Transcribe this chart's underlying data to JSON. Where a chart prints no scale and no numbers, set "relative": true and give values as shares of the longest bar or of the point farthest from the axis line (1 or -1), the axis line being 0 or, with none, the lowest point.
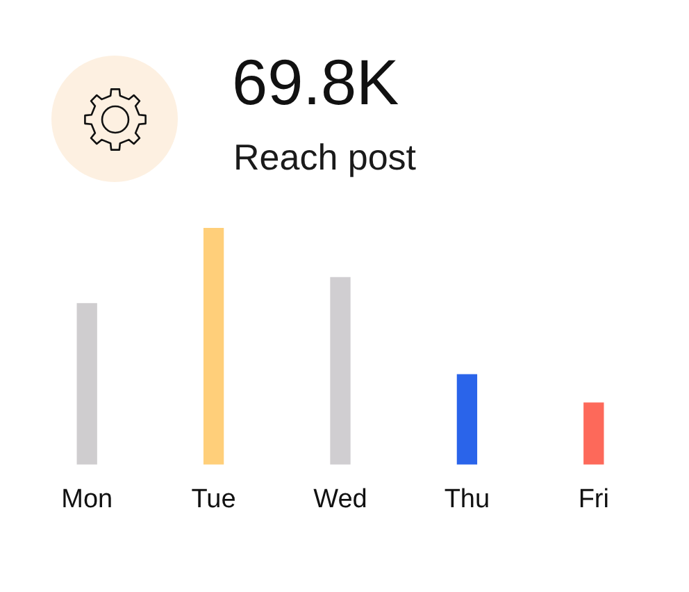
{
  "chart_data": {
    "type": "bar",
    "title": "69.8K",
    "subtitle": "Reach post",
    "categories": [
      "Mon",
      "Tue",
      "Wed",
      "Thu",
      "Fri"
    ],
    "values": [
      0.68,
      1,
      0.79,
      0.38,
      0.26
    ],
    "colors": [
      "#cfcdcf",
      "#ffcf7a",
      "#d0ced1",
      "#2a64ea",
      "#fd695a"
    ],
    "relative": true
  }
}
